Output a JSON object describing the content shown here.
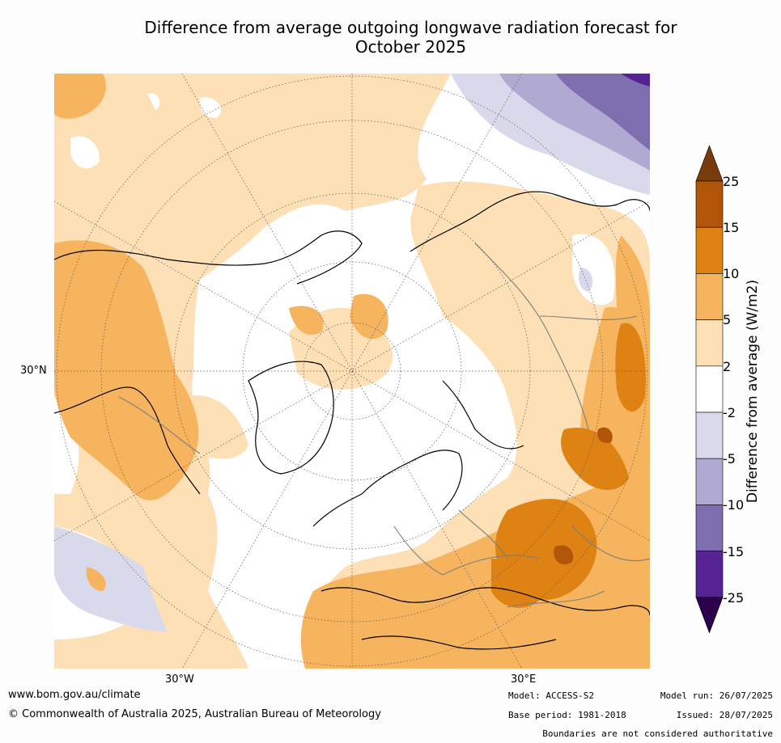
{
  "title": {
    "line1": "Difference from average outgoing longwave radiation forecast for",
    "line2": "October 2025"
  },
  "map": {
    "projection": "north polar stereographic",
    "labels": {
      "lat_30n": "30°N",
      "lon_30w": "30°W",
      "lon_30e": "30°E"
    }
  },
  "colorbar": {
    "label": "Difference from average (W/m2)",
    "ticks": [
      "25",
      "15",
      "10",
      "5",
      "2",
      "-2",
      "-5",
      "-10",
      "-15",
      "-25"
    ],
    "colors": [
      "#7a3b0c",
      "#b15608",
      "#df8214",
      "#f7b45e",
      "#fde0b5",
      "#ffffff",
      "#d9d9ec",
      "#b0aad2",
      "#7e6eb0",
      "#552394",
      "#2d004b"
    ]
  },
  "footer": {
    "website": "www.bom.gov.au/climate",
    "copyright": "© Commonwealth of Australia 2025, Australian Bureau of Meteorology",
    "model": "Model: ACCESS-S2",
    "base_period": "Base period: 1981-2018",
    "model_run": "Model run: 26/07/2025",
    "issued": "Issued: 28/07/2025",
    "disclaimer": "Boundaries are not considered authoritative"
  }
}
